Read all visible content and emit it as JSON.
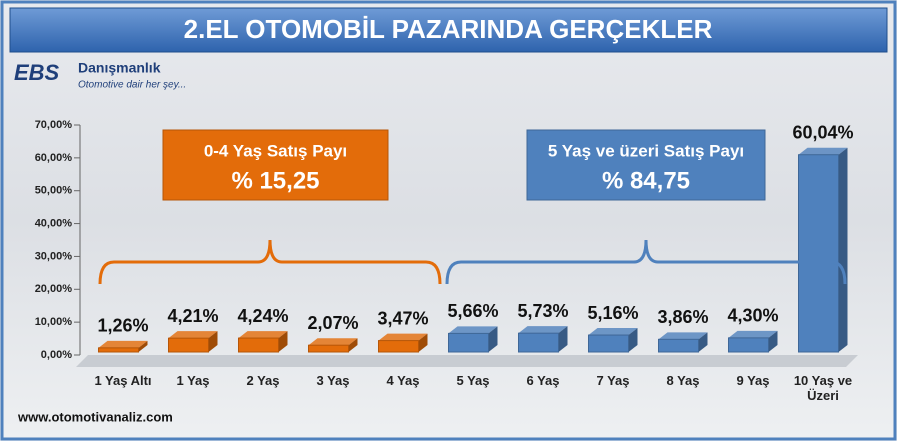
{
  "header": {
    "logo": "EBS",
    "brand": "Danışmanlık",
    "slogan": "Otomotive dair her şey..."
  },
  "footer": "www.otomotivanaliz.com",
  "chart_data": {
    "type": "bar",
    "title": "2.EL OTOMOBİL PAZARINDA GERÇEKLER",
    "categories": [
      "1 Yaş Altı",
      "1 Yaş",
      "2 Yaş",
      "3 Yaş",
      "4 Yaş",
      "5 Yaş",
      "6 Yaş",
      "7 Yaş",
      "8 Yaş",
      "9 Yaş",
      "10 Yaş ve Üzeri"
    ],
    "values": [
      1.26,
      4.21,
      4.24,
      2.07,
      3.47,
      5.66,
      5.73,
      5.16,
      3.86,
      4.3,
      60.04
    ],
    "value_labels": [
      "1,26%",
      "4,21%",
      "4,24%",
      "2,07%",
      "3,47%",
      "5,66%",
      "5,73%",
      "5,16%",
      "3,86%",
      "4,30%",
      "60,04%"
    ],
    "colors": [
      "#e36c0a",
      "#e36c0a",
      "#e36c0a",
      "#e36c0a",
      "#e36c0a",
      "#4f81bd",
      "#4f81bd",
      "#4f81bd",
      "#4f81bd",
      "#4f81bd",
      "#4f81bd"
    ],
    "ylim": [
      0,
      70
    ],
    "yticks": [
      {
        "value": 0,
        "label": "0,00%"
      },
      {
        "value": 10,
        "label": "10,00%"
      },
      {
        "value": 20,
        "label": "20,00%"
      },
      {
        "value": 30,
        "label": "30,00%"
      },
      {
        "value": 40,
        "label": "40,00%"
      },
      {
        "value": 50,
        "label": "50,00%"
      },
      {
        "value": 60,
        "label": "60,00%"
      },
      {
        "value": 70,
        "label": "70,00%"
      }
    ],
    "annotations": [
      {
        "title": "0-4 Yaş Satış Payı",
        "text": "% 15,25",
        "color": "#e36c0a"
      },
      {
        "title": "5 Yaş ve üzeri Satış Payı",
        "text": "% 84,75",
        "color": "#4f81bd"
      }
    ]
  }
}
